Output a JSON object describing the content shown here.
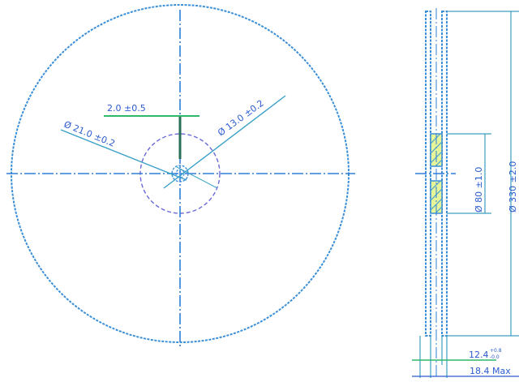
{
  "front_view": {
    "dim_arbor_width": "2.0 ±0.5",
    "dim_arbor_dia": "Ø 21.0 ±0.2",
    "dim_hub_dia": "Ø 13.0 ±0.2"
  },
  "side_view": {
    "dim_hub_dia": "Ø 80 ±1.0",
    "dim_outer_dia": "Ø 330 ±2.0",
    "dim_hub_width": "12.4",
    "dim_hub_width_tol_upper": "+0.8",
    "dim_hub_width_tol_lower": "-0.0",
    "dim_max_width": "18.4 Max"
  },
  "colors": {
    "line": "#3a8fd8",
    "text": "#2a5bd0",
    "hub_fill": "#e6f59a"
  }
}
